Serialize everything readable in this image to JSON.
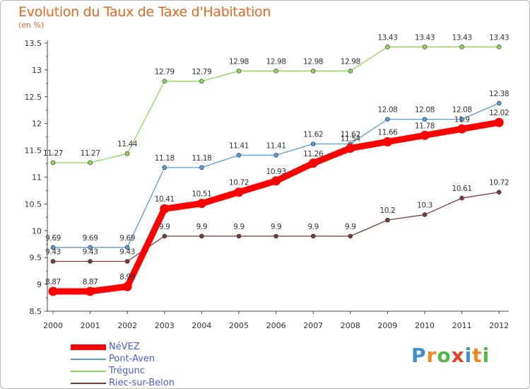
{
  "title": "Evolution du Taux de Taxe d'Habitation",
  "subtitle": "(en %)",
  "logo": {
    "text": "Proxiti",
    "colors": [
      "#3f8fd1",
      "#f08a1c",
      "#54b948",
      "#e23e2a",
      "#3f8fd1",
      "#f08a1c",
      "#54b948"
    ]
  },
  "chart_data": {
    "type": "line",
    "x": [
      "2000",
      "2001",
      "2002",
      "2003",
      "2004",
      "2005",
      "2006",
      "2007",
      "2008",
      "2009",
      "2010",
      "2011",
      "2012"
    ],
    "ylim": [
      8.5,
      13.5
    ],
    "yticks": [
      "8.5",
      "9",
      "9.5",
      "10",
      "10.5",
      "11",
      "11.5",
      "12",
      "12.5",
      "13",
      "13.5"
    ],
    "grid": false,
    "legend_position": "bottom-left",
    "series": [
      {
        "name": "NéVEZ",
        "color": "#ff0000",
        "values": [
          8.87,
          8.87,
          8.96,
          10.41,
          10.51,
          10.72,
          10.93,
          11.26,
          11.54,
          11.66,
          11.78,
          11.9,
          12.02
        ],
        "labels": [
          "8.87",
          "8.87",
          "8.96",
          "10.41",
          "10.51",
          "10.72",
          "10.93",
          "11.26",
          "11.54",
          "11.66",
          "11.78",
          "11.9",
          "12.02"
        ]
      },
      {
        "name": "Pont-Aven",
        "color": "#5b9bd5",
        "values": [
          9.69,
          9.69,
          9.69,
          11.18,
          11.18,
          11.41,
          11.41,
          11.62,
          11.62,
          12.08,
          12.08,
          12.08,
          12.38
        ],
        "labels": [
          "9.69",
          "9.69",
          "9.69",
          "11.18",
          "11.18",
          "11.41",
          "11.41",
          "11.62",
          "11.62",
          "12.08",
          "12.08",
          "12.08",
          "12.38"
        ]
      },
      {
        "name": "Trégunc",
        "color": "#8fd35b",
        "values": [
          11.27,
          11.27,
          11.44,
          12.79,
          12.79,
          12.98,
          12.98,
          12.98,
          12.98,
          13.43,
          13.43,
          13.43,
          13.43
        ],
        "labels": [
          "11.27",
          "11.27",
          "11.44",
          "12.79",
          "12.79",
          "12.98",
          "12.98",
          "12.98",
          "12.98",
          "13.43",
          "13.43",
          "13.43",
          "13.43"
        ]
      },
      {
        "name": "Riec-sur-Belon",
        "color": "#7b3a3a",
        "values": [
          9.43,
          9.43,
          9.43,
          9.9,
          9.9,
          9.9,
          9.9,
          9.9,
          9.9,
          10.2,
          10.3,
          10.61,
          10.72
        ],
        "labels": [
          "9.43",
          "9.43",
          "9.43",
          "9.9",
          "9.9",
          "9.9",
          "9.9",
          "9.9",
          "9.9",
          "10.2",
          "10.3",
          "10.61",
          "10.72"
        ]
      }
    ]
  }
}
